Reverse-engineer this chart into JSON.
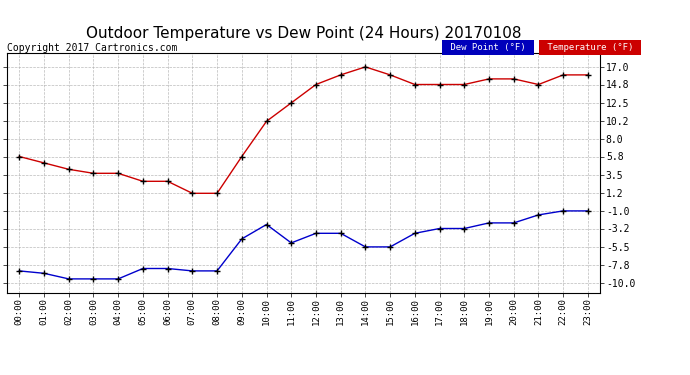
{
  "title": "Outdoor Temperature vs Dew Point (24 Hours) 20170108",
  "copyright": "Copyright 2017 Cartronics.com",
  "x_labels": [
    "00:00",
    "01:00",
    "02:00",
    "03:00",
    "04:00",
    "05:00",
    "06:00",
    "07:00",
    "08:00",
    "09:00",
    "10:00",
    "11:00",
    "12:00",
    "13:00",
    "14:00",
    "15:00",
    "16:00",
    "17:00",
    "18:00",
    "19:00",
    "20:00",
    "21:00",
    "22:00",
    "23:00"
  ],
  "temperature": [
    5.8,
    5.0,
    4.2,
    3.7,
    3.7,
    2.7,
    2.7,
    1.2,
    1.2,
    5.8,
    10.2,
    12.5,
    14.8,
    16.0,
    17.0,
    16.0,
    14.8,
    14.8,
    14.8,
    15.5,
    15.5,
    14.8,
    16.0,
    16.0
  ],
  "dew_point": [
    -8.5,
    -8.8,
    -9.5,
    -9.5,
    -9.5,
    -8.2,
    -8.2,
    -8.5,
    -8.5,
    -4.5,
    -2.7,
    -5.0,
    -3.8,
    -3.8,
    -5.5,
    -5.5,
    -3.8,
    -3.2,
    -3.2,
    -2.5,
    -2.5,
    -1.5,
    -1.0,
    -1.0
  ],
  "y_ticks": [
    -10.0,
    -7.8,
    -5.5,
    -3.2,
    -1.0,
    1.2,
    3.5,
    5.8,
    8.0,
    10.2,
    12.5,
    14.8,
    17.0
  ],
  "ylim": [
    -11.2,
    18.8
  ],
  "temp_color": "#cc0000",
  "dew_color": "#0000cc",
  "bg_color": "#ffffff",
  "plot_bg": "#ffffff",
  "grid_color": "#aaaaaa",
  "legend_temp_bg": "#cc0000",
  "legend_dew_bg": "#0000bb",
  "legend_text_color": "#ffffff",
  "title_fontsize": 11,
  "copyright_fontsize": 7
}
